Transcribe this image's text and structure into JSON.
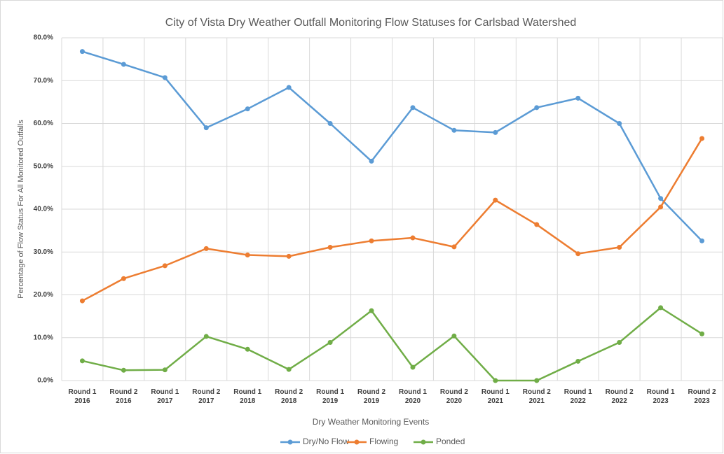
{
  "chart_data": {
    "type": "line",
    "title": "City of Vista Dry Weather Outfall Monitoring Flow Statuses for Carlsbad Watershed",
    "x_label": "Dry Weather Monitoring Events",
    "y_label": "Percentage of Flow Status For All Monitored Outfalls",
    "categories": [
      "Round 1\n2016",
      "Round 2\n2016",
      "Round 1\n2017",
      "Round 2\n2017",
      "Round 1\n2018",
      "Round 2\n2018",
      "Round 1\n2019",
      "Round 2\n2019",
      "Round 1\n2020",
      "Round 2\n2020",
      "Round 1\n2021",
      "Round 2\n2021",
      "Round 1\n2022",
      "Round 2\n2022",
      "Round 1\n2023",
      "Round 2\n2023"
    ],
    "series": [
      {
        "name": "Dry/No Flow",
        "color": "#5b9bd5",
        "values": [
          76.8,
          73.8,
          70.7,
          59.0,
          63.4,
          68.4,
          60.0,
          51.2,
          63.7,
          58.4,
          57.9,
          63.7,
          65.9,
          60.0,
          42.5,
          32.6
        ]
      },
      {
        "name": "Flowing",
        "color": "#ed7d31",
        "values": [
          18.6,
          23.8,
          26.8,
          30.8,
          29.3,
          29.0,
          31.1,
          32.6,
          33.3,
          31.2,
          42.1,
          36.4,
          29.6,
          31.1,
          40.5,
          56.5
        ]
      },
      {
        "name": "Ponded",
        "color": "#70ad47",
        "values": [
          4.6,
          2.4,
          2.5,
          10.3,
          7.3,
          2.6,
          8.9,
          16.3,
          3.1,
          10.4,
          0,
          0,
          4.5,
          8.9,
          17.0,
          10.9
        ]
      }
    ],
    "ylim": [
      0,
      80
    ],
    "yticks": [
      {
        "value": 0,
        "label": "0.0%"
      },
      {
        "value": 10,
        "label": "10.0%"
      },
      {
        "value": 20,
        "label": "20.0%"
      },
      {
        "value": 30,
        "label": "30.0%"
      },
      {
        "value": 40,
        "label": "40.0%"
      },
      {
        "value": 50,
        "label": "50.0%"
      },
      {
        "value": 60,
        "label": "60.0%"
      },
      {
        "value": 70,
        "label": "70.0%"
      },
      {
        "value": 80,
        "label": "80.0%"
      }
    ],
    "grid": true,
    "legend": "bottom"
  }
}
